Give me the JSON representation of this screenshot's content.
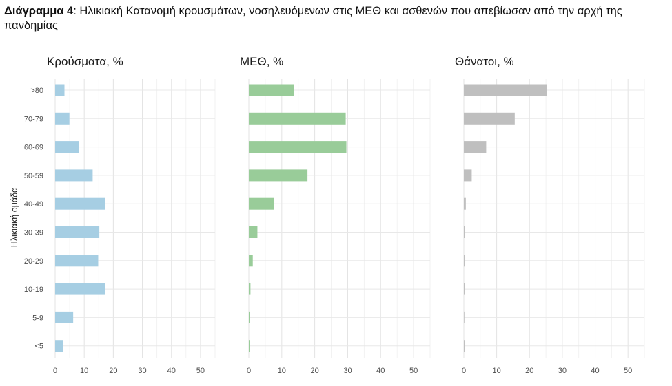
{
  "caption": {
    "prefix": "Διάγραμμα 4",
    "text": ": Ηλικιακή Κατανομή κρουσμάτων, νοσηλευόμενων στις ΜΕΘ και ασθενών που απεβίωσαν από την αρχή της πανδημίας"
  },
  "chart_data": {
    "type": "bar",
    "orientation": "horizontal",
    "ylabel": "Ηλικιακή ομάδα",
    "categories": [
      ">80",
      "70-79",
      "60-69",
      "50-59",
      "40-49",
      "30-39",
      "20-29",
      "10-19",
      "5-9",
      "<5"
    ],
    "xticks": [
      0,
      10,
      20,
      30,
      40,
      50
    ],
    "xlim": [
      0,
      55
    ],
    "grid": true,
    "legend": "none",
    "panels": [
      {
        "title": "Κρούσματα, %",
        "color": "#a6cee3",
        "values": [
          3.2,
          4.9,
          8.1,
          12.9,
          17.3,
          15.2,
          14.8,
          17.3,
          6.2,
          2.7
        ]
      },
      {
        "title": "ΜΕΘ, %",
        "color": "#99cc99",
        "values": [
          13.8,
          29.4,
          29.6,
          17.8,
          7.6,
          2.6,
          1.2,
          0.5,
          0.2,
          0.2
        ]
      },
      {
        "title": "Θάνατοι, %",
        "color": "#bfbfbf",
        "values": [
          25.2,
          15.5,
          6.8,
          2.4,
          0.6,
          0.2,
          0.1,
          0.1,
          0.0,
          0.1
        ]
      }
    ]
  }
}
